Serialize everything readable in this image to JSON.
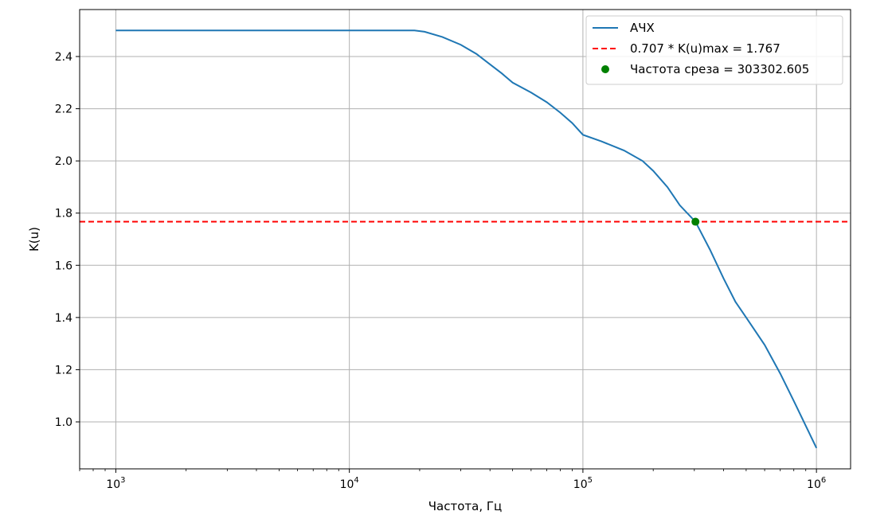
{
  "chart_data": {
    "type": "line",
    "xlabel": "Частота, Гц",
    "ylabel": "K(u)",
    "x_scale": "log",
    "xlim": [
      700,
      1400000
    ],
    "ylim": [
      0.82,
      2.58
    ],
    "grid": true,
    "legend_position": "top-right",
    "x_ticks": [
      {
        "value": 1000,
        "base": "10",
        "exp": "3"
      },
      {
        "value": 10000,
        "base": "10",
        "exp": "4"
      },
      {
        "value": 100000,
        "base": "10",
        "exp": "5"
      },
      {
        "value": 1000000,
        "base": "10",
        "exp": "6"
      }
    ],
    "y_ticks": [
      "1.0",
      "1.2",
      "1.4",
      "1.6",
      "1.8",
      "2.0",
      "2.2",
      "2.4"
    ],
    "series": [
      {
        "name": "АЧХ",
        "kind": "line",
        "color": "#1f77b4",
        "points": [
          [
            1000,
            2.5
          ],
          [
            5000,
            2.5
          ],
          [
            10000,
            2.5
          ],
          [
            19000,
            2.5
          ],
          [
            21000,
            2.495
          ],
          [
            25000,
            2.475
          ],
          [
            30000,
            2.445
          ],
          [
            35000,
            2.41
          ],
          [
            40000,
            2.37
          ],
          [
            45000,
            2.335
          ],
          [
            50000,
            2.3
          ],
          [
            60000,
            2.262
          ],
          [
            70000,
            2.225
          ],
          [
            80000,
            2.185
          ],
          [
            90000,
            2.145
          ],
          [
            100000,
            2.1
          ],
          [
            120000,
            2.075
          ],
          [
            150000,
            2.04
          ],
          [
            180000,
            2.0
          ],
          [
            200000,
            1.962
          ],
          [
            230000,
            1.9
          ],
          [
            260000,
            1.83
          ],
          [
            303302.605,
            1.767
          ],
          [
            350000,
            1.66
          ],
          [
            400000,
            1.55
          ],
          [
            450000,
            1.46
          ],
          [
            500000,
            1.4
          ],
          [
            600000,
            1.295
          ],
          [
            700000,
            1.185
          ],
          [
            800000,
            1.08
          ],
          [
            900000,
            0.985
          ],
          [
            1000000,
            0.9
          ]
        ]
      },
      {
        "name": "0.707 * K(u)max = 1.767",
        "kind": "hline",
        "color": "#ff0000",
        "y": 1.767
      },
      {
        "name": "Частота среза = 303302.605",
        "kind": "point",
        "color": "#008000",
        "x": 303302.605,
        "y": 1.767
      }
    ]
  }
}
